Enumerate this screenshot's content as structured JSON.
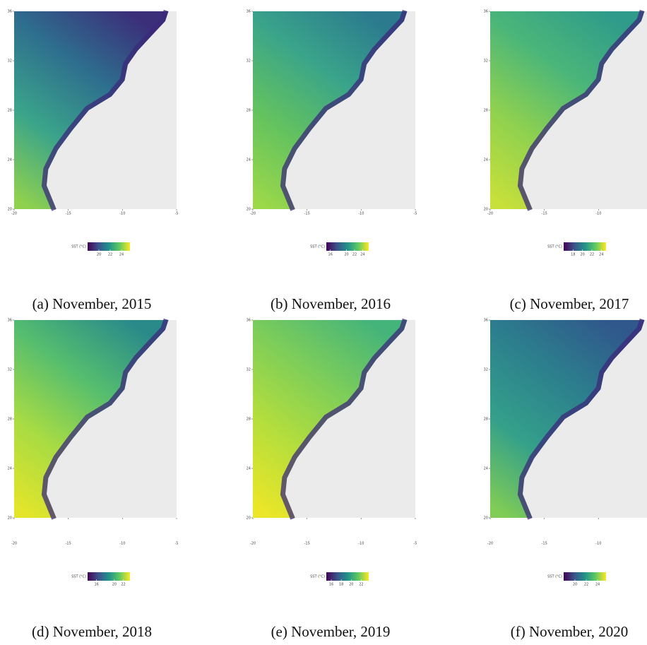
{
  "panels": [
    {
      "caption": "(a) November, 2015",
      "legend_title": "SST (°C)",
      "legend_lim": [
        18,
        25.5
      ],
      "legend_ticks": [
        20,
        22,
        24
      ],
      "xlim": [
        -20,
        -5
      ],
      "xticks": [
        -20,
        -15,
        -10,
        -5
      ],
      "ylim": [
        20,
        36
      ],
      "yticks": [
        20,
        24,
        28,
        32,
        36
      ]
    },
    {
      "caption": "(b) November, 2016",
      "legend_title": "SST (°C)",
      "legend_lim": [
        15,
        25.5
      ],
      "legend_ticks": [
        16,
        20,
        22,
        24
      ],
      "xlim": [
        -20,
        -5
      ],
      "xticks": [
        -20,
        -15,
        -10,
        -5
      ],
      "ylim": [
        20,
        36
      ],
      "yticks": [
        20,
        24,
        28,
        32,
        36
      ]
    },
    {
      "caption": "(c) November, 2017",
      "legend_title": "SST (°C)",
      "legend_lim": [
        16,
        25
      ],
      "legend_ticks": [
        18,
        20,
        22,
        24
      ],
      "xlim": [
        -20,
        -5
      ],
      "xticks": [
        -20,
        -15,
        -10
      ],
      "ylim": [
        20,
        36
      ],
      "yticks": [
        20,
        24,
        28,
        32,
        36
      ]
    },
    {
      "caption": "(d) November, 2018",
      "legend_title": "SST (°C)",
      "legend_lim": [
        14,
        23.5
      ],
      "legend_ticks": [
        16,
        20,
        22
      ],
      "xlim": [
        -20,
        -5
      ],
      "xticks": [
        -20,
        -15,
        -10,
        -5
      ],
      "ylim": [
        20,
        36
      ],
      "yticks": [
        20,
        24,
        28,
        32,
        36
      ]
    },
    {
      "caption": "(e) November, 2019",
      "legend_title": "SST (°C)",
      "legend_lim": [
        15,
        23.5
      ],
      "legend_ticks": [
        16,
        18,
        20,
        22
      ],
      "xlim": [
        -20,
        -5
      ],
      "xticks": [
        -20,
        -15,
        -10,
        -5
      ],
      "ylim": [
        20,
        36
      ],
      "yticks": [
        20,
        24,
        28,
        32,
        36
      ]
    },
    {
      "caption": "(f) November, 2020",
      "legend_title": "SST (°C)",
      "legend_lim": [
        18,
        25.5
      ],
      "legend_ticks": [
        20,
        22,
        24
      ],
      "xlim": [
        -20,
        -5
      ],
      "xticks": [
        -20,
        -15,
        -10
      ],
      "ylim": [
        20,
        36
      ],
      "yticks": [
        20,
        24,
        28,
        32,
        36
      ]
    }
  ]
}
